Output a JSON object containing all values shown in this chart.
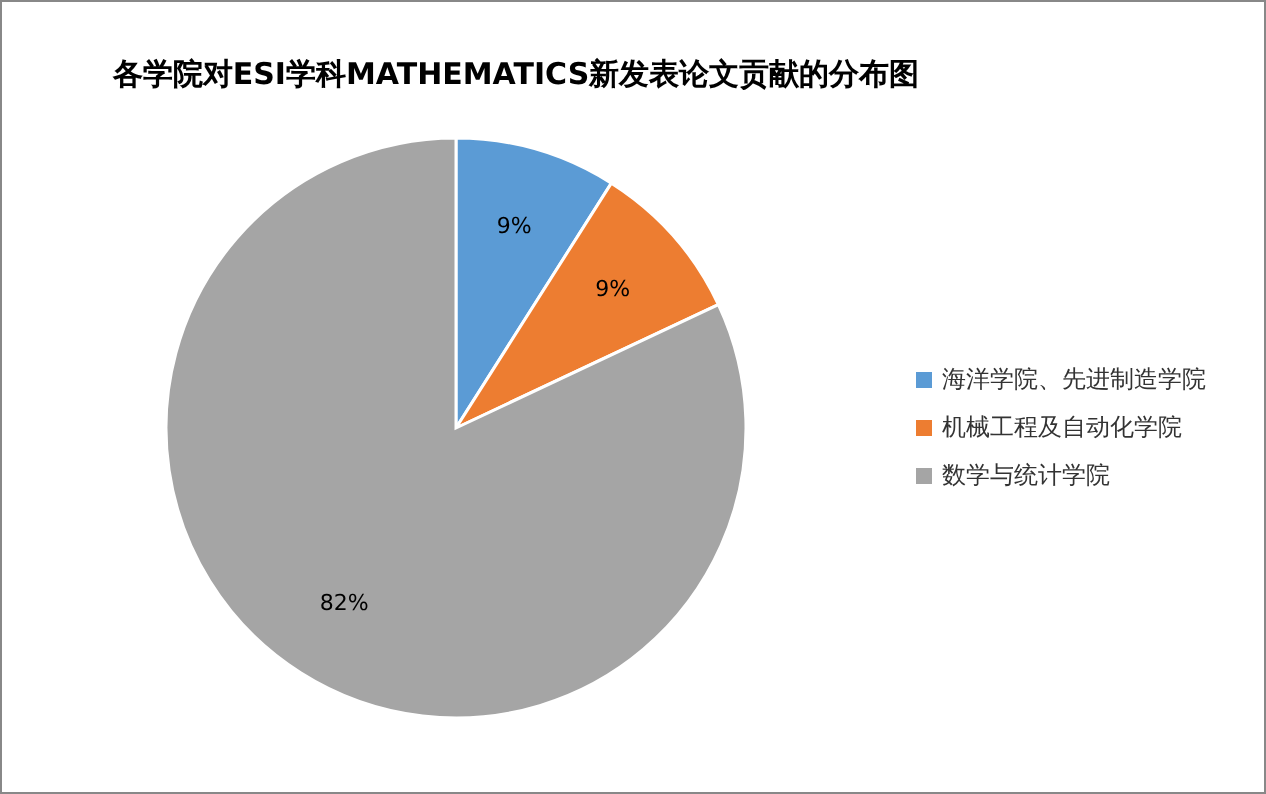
{
  "chart_data": {
    "type": "pie",
    "title": "各学院对ESI学科MATHEMATICS新发表论文贡献的分布图",
    "categories": [
      "海洋学院、先进制造学院",
      "机械工程及自动化学院",
      "数学与统计学院"
    ],
    "values": [
      9,
      9,
      82
    ],
    "colors": [
      "#5b9bd5",
      "#ed7d31",
      "#a5a5a5"
    ],
    "value_labels": [
      "9%",
      "9%",
      "82%"
    ],
    "legend": "right"
  }
}
